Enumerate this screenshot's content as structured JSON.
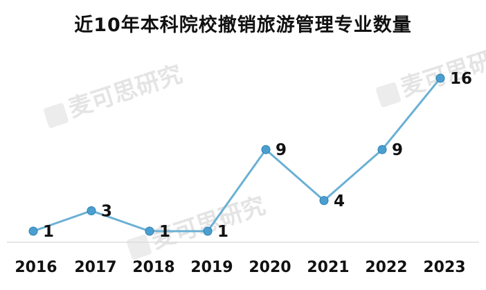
{
  "chart_data": {
    "type": "line",
    "title": "近10年本科院校撤销旅游管理专业数量",
    "categories": [
      "2016",
      "2017",
      "2018",
      "2019",
      "2020",
      "2021",
      "2022",
      "2023"
    ],
    "values": [
      1,
      3,
      1,
      1,
      9,
      4,
      9,
      16
    ],
    "data_labels": [
      "1",
      "3",
      "1",
      "1",
      "9",
      "4",
      "9",
      "16"
    ],
    "xlabel": "",
    "ylabel": "",
    "ylim": [
      1,
      16
    ],
    "grid": false,
    "legend": "none",
    "line_color": "#6ab0d4",
    "marker_color": "#4a9fd0",
    "watermark": "麦可思研究"
  }
}
